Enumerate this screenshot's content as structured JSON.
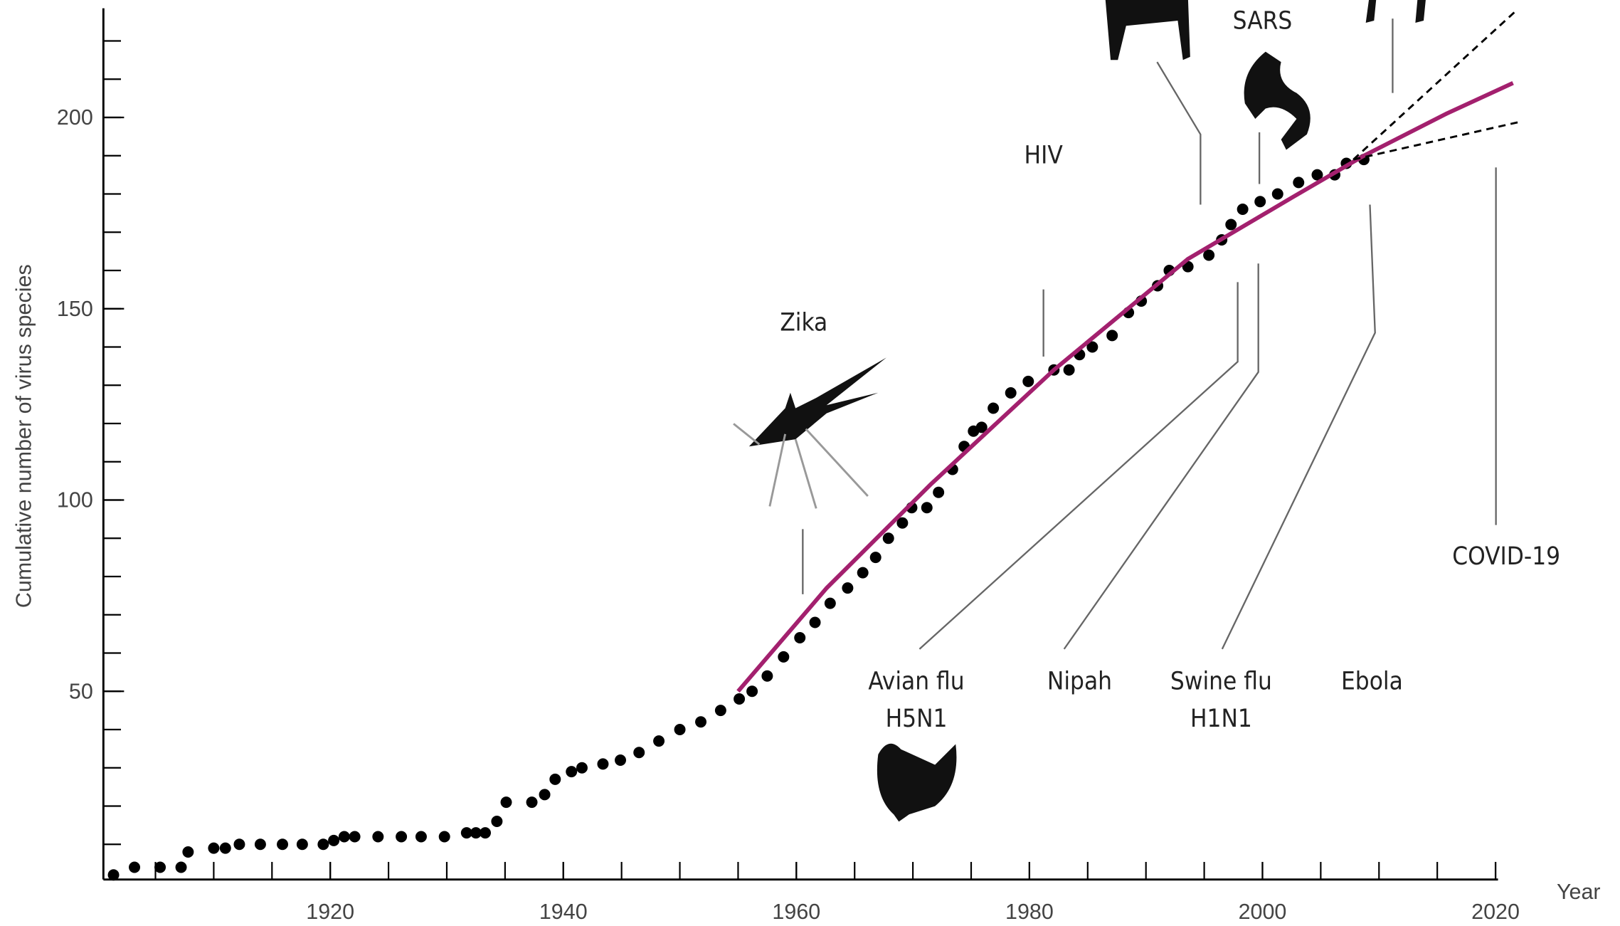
{
  "chart_data": {
    "type": "scatter",
    "x_label": "Year",
    "y_label": "Cumulative number of virus species",
    "xlim": [
      1900,
      2020
    ],
    "ylim": [
      0,
      228
    ],
    "xticks": [
      1920,
      1940,
      1960,
      1980,
      2000,
      2020
    ],
    "yticks": [
      50,
      100,
      150,
      200
    ],
    "x_minor_ticks": [
      1905,
      1910,
      1915,
      1920,
      1925,
      1930,
      1935,
      1940,
      1945,
      1950,
      1955,
      1960,
      1965,
      1970,
      1975,
      1980,
      1985,
      1990,
      1995,
      2000,
      2005,
      2010,
      2015,
      2020
    ],
    "y_minor_ticks": [
      10,
      20,
      30,
      40,
      50,
      60,
      70,
      80,
      90,
      100,
      110,
      120,
      130,
      140,
      150,
      160,
      170,
      180,
      190,
      200,
      210,
      220
    ],
    "series": [
      {
        "type": "scatter",
        "color": "#000000",
        "x": [
          1901.4,
          1903.2,
          1905.4,
          1907.2,
          1907.8,
          1910,
          1911,
          1912.2,
          1914,
          1915.9,
          1917.6,
          1919.4,
          1920.3,
          1921.2,
          1922.1,
          1924.1,
          1926.1,
          1927.8,
          1929.8,
          1931.7,
          1932.5,
          1933.3,
          1934.3,
          1935.1,
          1937.3,
          1938.4,
          1939.3,
          1940.7,
          1941.6,
          1943.4,
          1944.9,
          1946.5,
          1948.2,
          1950,
          1951.8,
          1953.5,
          1955.1,
          1956.2,
          1957.5,
          1958.9,
          1960.3,
          1961.6,
          1962.9,
          1964.4,
          1965.7,
          1966.8,
          1967.9,
          1969.1,
          1969.9,
          1971.2,
          1972.2,
          1973.4,
          1974.4,
          1975.2,
          1975.9,
          1976.9,
          1978.4,
          1979.9,
          1982.1,
          1983.4,
          1984.3,
          1985.4,
          1987.1,
          1988.5,
          1989.6,
          1991,
          1992,
          1993.6,
          1995.4,
          1996.5,
          1997.3,
          1998.3,
          1999.8,
          2001.3,
          2003.1,
          2004.7,
          2006.2,
          2007.2,
          2008.7
        ],
        "values": [
          2,
          4,
          4,
          4,
          8,
          9,
          9,
          10,
          10,
          10,
          10,
          10,
          11,
          12,
          12,
          12,
          12,
          12,
          12,
          13,
          13,
          13,
          16,
          21,
          21,
          23,
          27,
          29,
          30,
          31,
          32,
          34,
          37,
          40,
          42,
          45,
          48,
          50,
          54,
          59,
          64,
          68,
          73,
          77,
          81,
          85,
          90,
          94,
          98,
          98,
          102,
          108,
          114,
          118,
          119,
          124,
          128,
          131,
          134,
          134,
          138,
          140,
          143,
          149,
          152,
          156,
          160,
          161,
          164,
          168,
          172,
          176,
          178,
          180,
          183,
          185,
          185,
          188,
          189
        ]
      },
      {
        "type": "line",
        "color": "#a3206e",
        "x": [
          1955,
          1962.6,
          1971.5,
          1982.1,
          1993.6,
          2002.5,
          2008.7,
          2015.8,
          2021.5
        ],
        "values": [
          50,
          77,
          104,
          134,
          163,
          179,
          190,
          201,
          209
        ]
      },
      {
        "type": "dashed",
        "color": "#000000",
        "x": [
          2007.8,
          2021.8
        ],
        "values": [
          189,
          228
        ]
      },
      {
        "type": "dashed",
        "color": "#000000",
        "x": [
          2007.8,
          2022.3
        ],
        "values": [
          189,
          199
        ]
      }
    ],
    "annotations": [
      {
        "lines": [
          "Zika"
        ]
      },
      {
        "lines": [
          "HIV"
        ]
      },
      {
        "lines": [
          "SARS"
        ]
      },
      {
        "lines": [
          "COVID-19"
        ]
      },
      {
        "lines": [
          "Avian flu",
          "H5N1"
        ]
      },
      {
        "lines": [
          "Nipah"
        ]
      },
      {
        "lines": [
          "Swine flu",
          "H1N1"
        ]
      },
      {
        "lines": [
          "Ebola"
        ]
      }
    ]
  }
}
